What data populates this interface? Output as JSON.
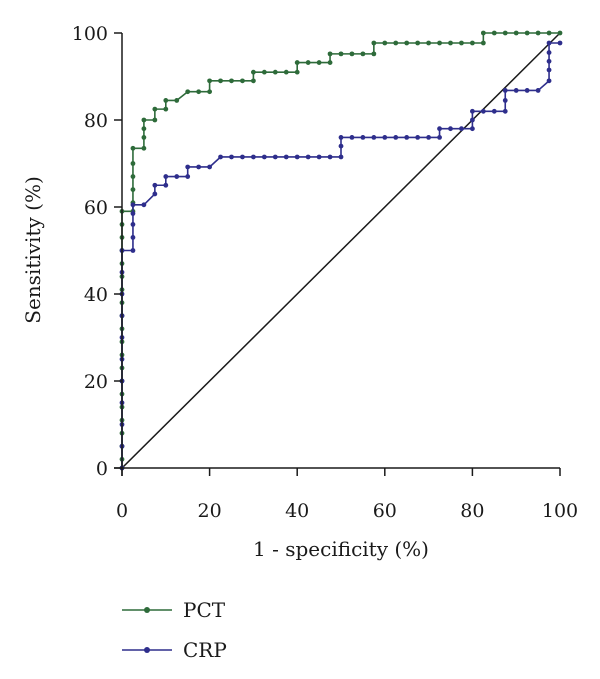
{
  "chart_data": {
    "type": "line",
    "title": "",
    "xlabel": "1 - specificity (%)",
    "ylabel": "Sensitivity (%)",
    "xlim": [
      0,
      100
    ],
    "ylim": [
      0,
      100
    ],
    "x_ticks": [
      "0",
      "20",
      "40",
      "60",
      "80",
      "100"
    ],
    "y_ticks": [
      "0",
      "20",
      "40",
      "60",
      "80",
      "100"
    ],
    "grid": false,
    "legend_position": "bottom-left",
    "diagonal_reference": true,
    "series": [
      {
        "name": "PCT",
        "color": "#2e6b3a",
        "points": [
          [
            0,
            0
          ],
          [
            0,
            2
          ],
          [
            0,
            5
          ],
          [
            0,
            8
          ],
          [
            0,
            11
          ],
          [
            0,
            14
          ],
          [
            0,
            17
          ],
          [
            0,
            20
          ],
          [
            0,
            23
          ],
          [
            0,
            26
          ],
          [
            0,
            29
          ],
          [
            0,
            32
          ],
          [
            0,
            35
          ],
          [
            0,
            38
          ],
          [
            0,
            41
          ],
          [
            0,
            44
          ],
          [
            0,
            47
          ],
          [
            0,
            50
          ],
          [
            0,
            53
          ],
          [
            0,
            56
          ],
          [
            0,
            59
          ],
          [
            2.5,
            59
          ],
          [
            2.5,
            61
          ],
          [
            2.5,
            64
          ],
          [
            2.5,
            67
          ],
          [
            2.5,
            70
          ],
          [
            2.5,
            73.5
          ],
          [
            5,
            73.5
          ],
          [
            5,
            76
          ],
          [
            5,
            78
          ],
          [
            5,
            80
          ],
          [
            7.5,
            80
          ],
          [
            7.5,
            82.5
          ],
          [
            10,
            82.5
          ],
          [
            10,
            84.5
          ],
          [
            12.5,
            84.5
          ],
          [
            15,
            86.5
          ],
          [
            17.5,
            86.5
          ],
          [
            20,
            86.5
          ],
          [
            20,
            89
          ],
          [
            22.5,
            89
          ],
          [
            25,
            89
          ],
          [
            27.5,
            89
          ],
          [
            30,
            89
          ],
          [
            30,
            91
          ],
          [
            32.5,
            91
          ],
          [
            35,
            91
          ],
          [
            37.5,
            91
          ],
          [
            40,
            91
          ],
          [
            40,
            93.2
          ],
          [
            42.5,
            93.2
          ],
          [
            45,
            93.2
          ],
          [
            47.5,
            93.2
          ],
          [
            47.5,
            95.2
          ],
          [
            50,
            95.2
          ],
          [
            52.5,
            95.2
          ],
          [
            55,
            95.2
          ],
          [
            57.5,
            95.2
          ],
          [
            57.5,
            97.7
          ],
          [
            60,
            97.7
          ],
          [
            62.5,
            97.7
          ],
          [
            65,
            97.7
          ],
          [
            67.5,
            97.7
          ],
          [
            70,
            97.7
          ],
          [
            72.5,
            97.7
          ],
          [
            75,
            97.7
          ],
          [
            77.5,
            97.7
          ],
          [
            80,
            97.7
          ],
          [
            82.5,
            97.7
          ],
          [
            82.5,
            100
          ],
          [
            85,
            100
          ],
          [
            87.5,
            100
          ],
          [
            90,
            100
          ],
          [
            92.5,
            100
          ],
          [
            95,
            100
          ],
          [
            97.5,
            100
          ],
          [
            100,
            100
          ]
        ]
      },
      {
        "name": "CRP",
        "color": "#2e2e8c",
        "points": [
          [
            0,
            0
          ],
          [
            0,
            5
          ],
          [
            0,
            10
          ],
          [
            0,
            15
          ],
          [
            0,
            20
          ],
          [
            0,
            25
          ],
          [
            0,
            30
          ],
          [
            0,
            35
          ],
          [
            0,
            40
          ],
          [
            0,
            45
          ],
          [
            0,
            50
          ],
          [
            2.5,
            50
          ],
          [
            2.5,
            53
          ],
          [
            2.5,
            56
          ],
          [
            2.5,
            58.5
          ],
          [
            2.5,
            60.5
          ],
          [
            5,
            60.5
          ],
          [
            7.5,
            63
          ],
          [
            7.5,
            65
          ],
          [
            10,
            65
          ],
          [
            10,
            67
          ],
          [
            12.5,
            67
          ],
          [
            15,
            67
          ],
          [
            15,
            69.2
          ],
          [
            17.5,
            69.2
          ],
          [
            20,
            69.2
          ],
          [
            22.5,
            71.5
          ],
          [
            25,
            71.5
          ],
          [
            27.5,
            71.5
          ],
          [
            30,
            71.5
          ],
          [
            32.5,
            71.5
          ],
          [
            35,
            71.5
          ],
          [
            37.5,
            71.5
          ],
          [
            40,
            71.5
          ],
          [
            42.5,
            71.5
          ],
          [
            45,
            71.5
          ],
          [
            47.5,
            71.5
          ],
          [
            50,
            71.5
          ],
          [
            50,
            74
          ],
          [
            50,
            76
          ],
          [
            52.5,
            76
          ],
          [
            55,
            76
          ],
          [
            57.5,
            76
          ],
          [
            60,
            76
          ],
          [
            62.5,
            76
          ],
          [
            65,
            76
          ],
          [
            67.5,
            76
          ],
          [
            70,
            76
          ],
          [
            72.5,
            76
          ],
          [
            72.5,
            78
          ],
          [
            75,
            78
          ],
          [
            77.5,
            78
          ],
          [
            80,
            78
          ],
          [
            80,
            80
          ],
          [
            80,
            82
          ],
          [
            82.5,
            82
          ],
          [
            85,
            82
          ],
          [
            87.5,
            82
          ],
          [
            87.5,
            84.5
          ],
          [
            87.5,
            86.8
          ],
          [
            90,
            86.8
          ],
          [
            92.5,
            86.8
          ],
          [
            95,
            86.8
          ],
          [
            97.5,
            89
          ],
          [
            97.5,
            91.5
          ],
          [
            97.5,
            93.5
          ],
          [
            97.5,
            95.5
          ],
          [
            97.5,
            97.7
          ],
          [
            100,
            97.7
          ]
        ]
      }
    ]
  }
}
